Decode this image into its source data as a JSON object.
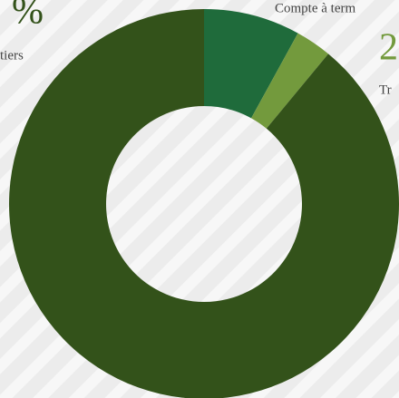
{
  "chart_data": {
    "type": "donut",
    "values": [
      8,
      3,
      89
    ],
    "colors": [
      "#1f6b3b",
      "#739a3d",
      "#33521a"
    ],
    "annotations": [
      "%",
      "tiers",
      "Compte à term",
      "2",
      "Tr"
    ]
  }
}
